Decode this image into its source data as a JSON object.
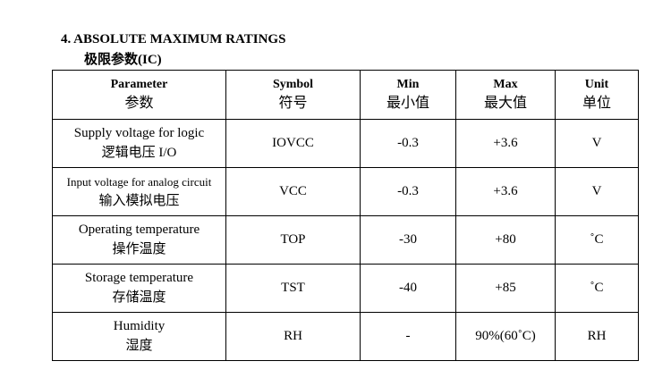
{
  "section": {
    "title": "4. ABSOLUTE MAXIMUM RATINGS",
    "subtitle": "极限参数(IC)"
  },
  "table": {
    "headers": [
      {
        "en": "Parameter",
        "zh": "参数"
      },
      {
        "en": "Symbol",
        "zh": "符号"
      },
      {
        "en": "Min",
        "zh": "最小值"
      },
      {
        "en": "Max",
        "zh": "最大值"
      },
      {
        "en": "Unit",
        "zh": "单位"
      }
    ],
    "rows": [
      {
        "param_en": "Supply voltage for logic",
        "param_zh": "逻辑电压  I/O",
        "symbol": "IOVCC",
        "min": "-0.3",
        "max": "+3.6",
        "unit": "V"
      },
      {
        "param_en": "Input voltage for analog circuit",
        "param_zh": "输入模拟电压",
        "symbol": "VCC",
        "min": "-0.3",
        "max": "+3.6",
        "unit": "V"
      },
      {
        "param_en": "Operating temperature",
        "param_zh": "操作温度",
        "symbol": "TOP",
        "min": "-30",
        "max": "+80",
        "unit": "˚C"
      },
      {
        "param_en": "Storage temperature",
        "param_zh": "存储温度",
        "symbol": "TST",
        "min": "-40",
        "max": "+85",
        "unit": "˚C"
      },
      {
        "param_en": "Humidity",
        "param_zh": "湿度",
        "symbol": "RH",
        "min": "-",
        "max": "90%(60˚C)",
        "unit": "RH"
      }
    ]
  }
}
